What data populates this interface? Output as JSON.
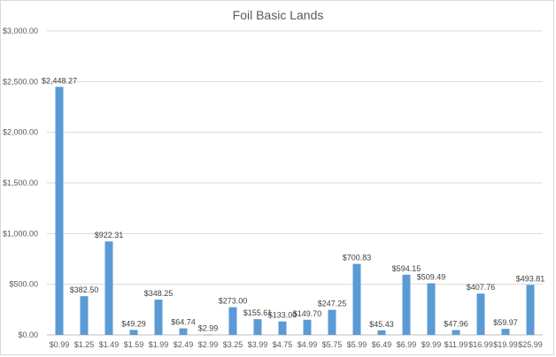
{
  "chart_data": {
    "type": "bar",
    "title": "Foil Basic Lands",
    "xlabel": "",
    "ylabel": "",
    "categories": [
      "$0.99",
      "$1.25",
      "$1.49",
      "$1.59",
      "$1.99",
      "$2.49",
      "$2.99",
      "$3.25",
      "$3.99",
      "$4.75",
      "$4.99",
      "$5.75",
      "$5.99",
      "$6.49",
      "$6.99",
      "$9.99",
      "$11.99",
      "$16.99",
      "$19.99",
      "$25.99"
    ],
    "values": [
      2448.27,
      382.5,
      922.31,
      49.29,
      348.25,
      64.74,
      2.99,
      273.0,
      155.61,
      133.0,
      149.7,
      247.25,
      700.83,
      45.43,
      594.15,
      509.49,
      47.96,
      407.76,
      59.97,
      493.81
    ],
    "data_labels": [
      "$2,448.27",
      "$382.50",
      "$922.31",
      "$49.29",
      "$348.25",
      "$64.74",
      "$2.99",
      "$273.00",
      "$155.61",
      "$133.00",
      "$149.70",
      "$247.25",
      "$700.83",
      "$45.43",
      "$594.15",
      "$509.49",
      "$47.96",
      "$407.76",
      "$59.97",
      "$493.81"
    ],
    "ylim": [
      0,
      3000
    ],
    "yticks": [
      0,
      500,
      1000,
      1500,
      2000,
      2500,
      3000
    ],
    "ytick_labels": [
      "$0.00",
      "$500.00",
      "$1,000.00",
      "$1,500.00",
      "$2,000.00",
      "$2,500.00",
      "$3,000.00"
    ],
    "grid": true,
    "bar_color": "#5b9bd5"
  }
}
